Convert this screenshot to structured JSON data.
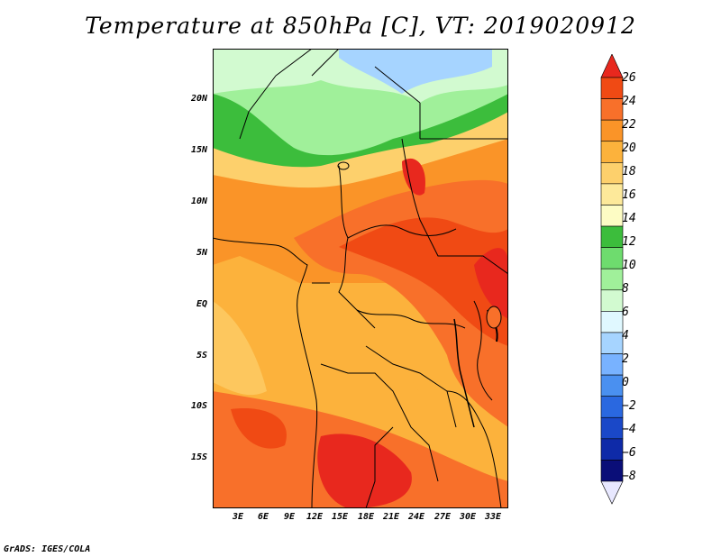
{
  "title": "Temperature at 850hPa [C], VT: 2019020912",
  "credit": "GrADS: IGES/COLA",
  "y_axis": {
    "labels": [
      "20N",
      "15N",
      "10N",
      "5N",
      "EQ",
      "5S",
      "10S",
      "15S"
    ]
  },
  "x_axis": {
    "labels": [
      "3E",
      "6E",
      "9E",
      "12E",
      "15E",
      "18E",
      "21E",
      "24E",
      "27E",
      "30E",
      "33E"
    ]
  },
  "colorbar": {
    "labels": [
      "26",
      "24",
      "22",
      "20",
      "18",
      "16",
      "14",
      "12",
      "10",
      "8",
      "6",
      "4",
      "2",
      "0",
      "−2",
      "−4",
      "−6",
      "−8"
    ],
    "colors": [
      "#e8281e",
      "#f04a14",
      "#f8702a",
      "#fa9428",
      "#fcb23c",
      "#fdd06c",
      "#fde99a",
      "#fdfcc4",
      "#3cbd3c",
      "#6edc6e",
      "#a0f09a",
      "#d2fad0",
      "#e0f8ff",
      "#a6d4ff",
      "#78b2ff",
      "#4a90f0",
      "#2a68e0",
      "#1a48c8",
      "#0e2aa8",
      "#0a0e78",
      "#e8e8ff"
    ]
  }
}
